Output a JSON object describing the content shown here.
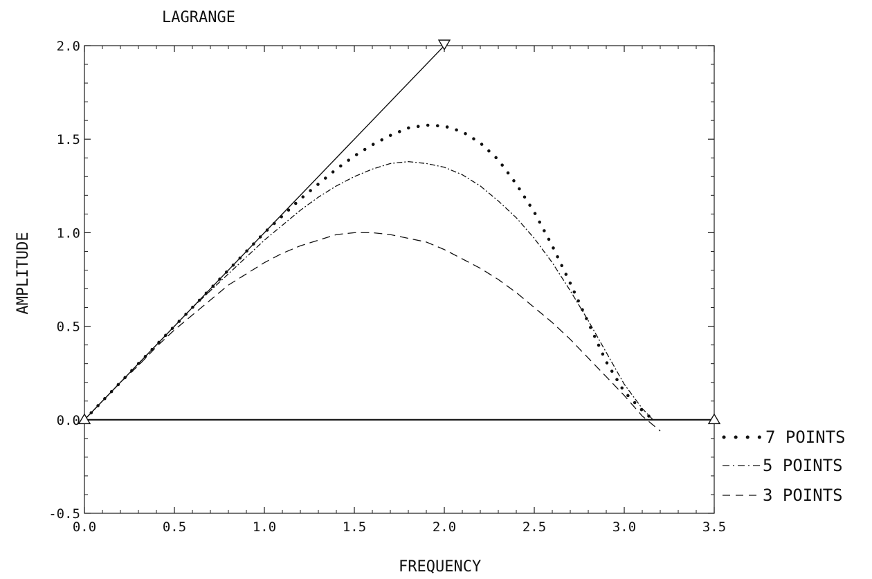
{
  "chart_data": {
    "type": "line",
    "title": "LAGRANGE",
    "xlabel": "FREQUENCY",
    "ylabel": "AMPLITUDE",
    "xlim": [
      0.0,
      3.5
    ],
    "ylim": [
      -0.5,
      2.0
    ],
    "x_ticks": [
      "0.0",
      "0.5",
      "1.0",
      "1.5",
      "2.0",
      "2.5",
      "3.0",
      "3.5"
    ],
    "y_ticks": [
      "-0.5",
      "0.0",
      "0.5",
      "1.0",
      "1.5",
      "2.0"
    ],
    "grid": false,
    "legend_position": "bottom-right outside",
    "reference_lines": [
      {
        "style": "solid",
        "points": [
          [
            0.0,
            0.0
          ],
          [
            2.0,
            2.0
          ]
        ]
      },
      {
        "style": "solid",
        "points": [
          [
            0.0,
            0.0
          ],
          [
            3.5,
            0.0
          ]
        ]
      }
    ],
    "markers": [
      {
        "shape": "triangle-down",
        "x": 2.0,
        "y": 2.0
      },
      {
        "shape": "triangle-up",
        "x": 3.5,
        "y": 0.0
      },
      {
        "shape": "triangle-up",
        "x": 0.0,
        "y": 0.0
      }
    ],
    "series": [
      {
        "name": "7 POINTS",
        "style": "dotted",
        "x": [
          0.0,
          0.1,
          0.2,
          0.3,
          0.4,
          0.5,
          0.6,
          0.7,
          0.8,
          0.9,
          1.0,
          1.1,
          1.2,
          1.3,
          1.4,
          1.5,
          1.6,
          1.7,
          1.8,
          1.9,
          2.0,
          2.1,
          2.2,
          2.3,
          2.4,
          2.5,
          2.6,
          2.7,
          2.8,
          2.9,
          3.0,
          3.1,
          3.16
        ],
        "y": [
          0.0,
          0.1,
          0.2,
          0.3,
          0.4,
          0.5,
          0.6,
          0.7,
          0.8,
          0.9,
          1.0,
          1.09,
          1.18,
          1.26,
          1.34,
          1.41,
          1.47,
          1.52,
          1.56,
          1.575,
          1.57,
          1.54,
          1.48,
          1.39,
          1.26,
          1.11,
          0.93,
          0.73,
          0.52,
          0.31,
          0.15,
          0.05,
          0.0
        ]
      },
      {
        "name": "5 POINTS",
        "style": "dash-dot",
        "x": [
          0.0,
          0.1,
          0.2,
          0.3,
          0.4,
          0.5,
          0.6,
          0.7,
          0.8,
          0.9,
          1.0,
          1.1,
          1.2,
          1.3,
          1.4,
          1.5,
          1.6,
          1.7,
          1.8,
          1.9,
          2.0,
          2.1,
          2.2,
          2.3,
          2.4,
          2.5,
          2.6,
          2.7,
          2.8,
          2.9,
          3.0,
          3.1,
          3.16
        ],
        "y": [
          0.0,
          0.1,
          0.2,
          0.3,
          0.4,
          0.5,
          0.6,
          0.69,
          0.78,
          0.87,
          0.96,
          1.04,
          1.12,
          1.19,
          1.25,
          1.3,
          1.34,
          1.37,
          1.38,
          1.37,
          1.35,
          1.31,
          1.25,
          1.17,
          1.08,
          0.97,
          0.84,
          0.69,
          0.53,
          0.36,
          0.19,
          0.06,
          0.0
        ]
      },
      {
        "name": "3 POINTS",
        "style": "dashed",
        "x": [
          0.0,
          0.1,
          0.2,
          0.3,
          0.4,
          0.5,
          0.6,
          0.7,
          0.8,
          0.9,
          1.0,
          1.1,
          1.2,
          1.3,
          1.4,
          1.5,
          1.6,
          1.7,
          1.8,
          1.9,
          2.0,
          2.1,
          2.2,
          2.3,
          2.4,
          2.5,
          2.6,
          2.7,
          2.8,
          2.9,
          3.0,
          3.1,
          3.2
        ],
        "y": [
          0.0,
          0.1,
          0.2,
          0.29,
          0.39,
          0.48,
          0.56,
          0.64,
          0.72,
          0.78,
          0.84,
          0.89,
          0.93,
          0.96,
          0.99,
          1.0,
          1.0,
          0.99,
          0.97,
          0.95,
          0.91,
          0.86,
          0.81,
          0.75,
          0.68,
          0.6,
          0.52,
          0.43,
          0.33,
          0.23,
          0.13,
          0.02,
          -0.06
        ]
      }
    ]
  }
}
